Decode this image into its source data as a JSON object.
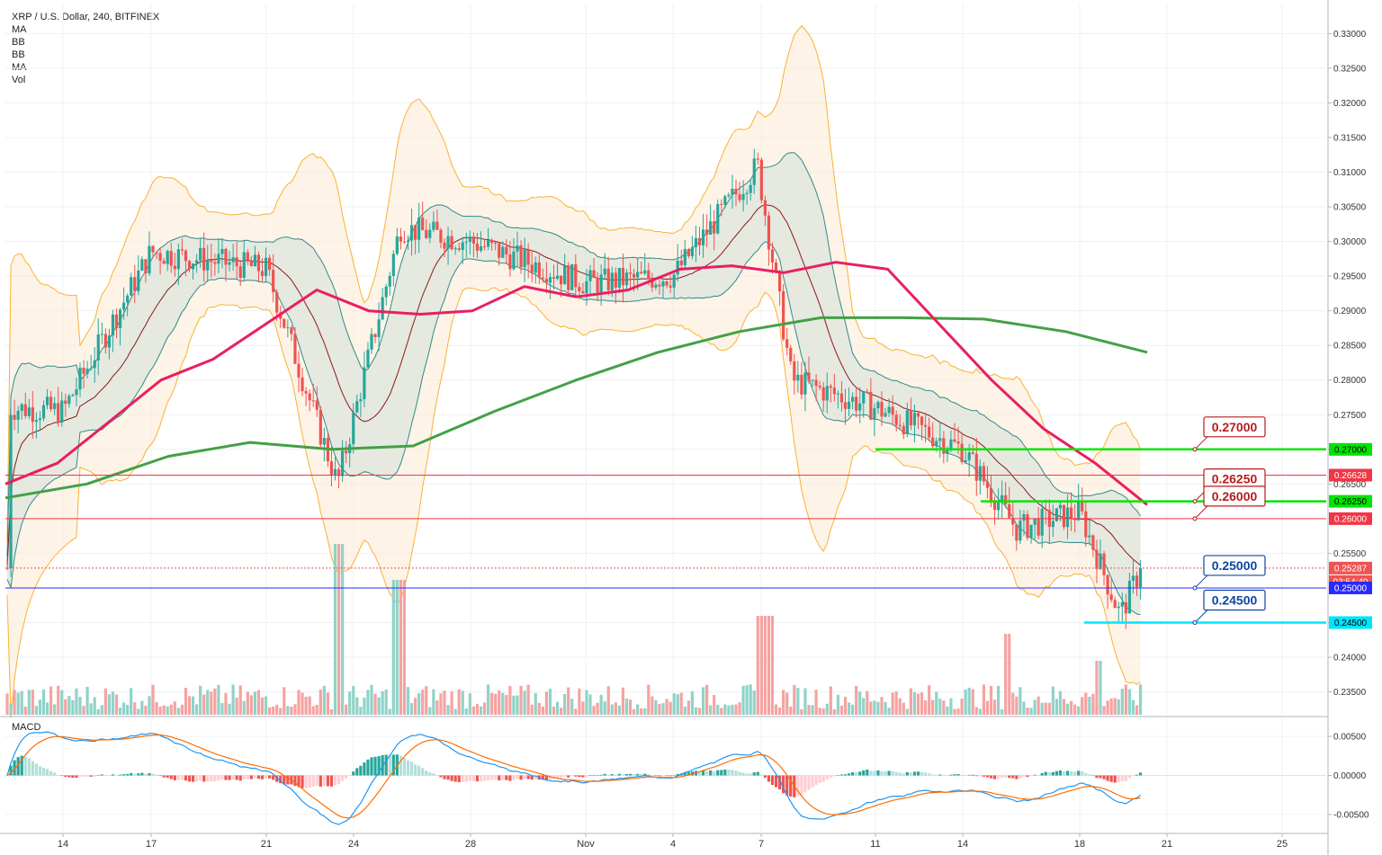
{
  "header": {
    "symbol_line": "XRP / U.S. Dollar, 240, BITFINEX",
    "indicators": [
      "MA",
      "BB",
      "BB",
      "MA",
      "Vol"
    ]
  },
  "macd_label": "MACD",
  "colors": {
    "up": "#26a69a",
    "down": "#ef5350",
    "ma_fast": "#e91e63",
    "ma_slow": "#43a047",
    "bb_band": "#f9b233",
    "bb_inner": "#2e8b8b",
    "macd_line": "#2196f3",
    "signal_line": "#ff6d00",
    "grid": "#eef0f3"
  },
  "chart_data": [
    {
      "type": "candlestick",
      "title": "XRP / U.S. Dollar, 240, BITFINEX",
      "x_ticks": [
        "14",
        "17",
        "21",
        "24",
        "28",
        "Nov",
        "4",
        "7",
        "11",
        "14",
        "18",
        "21",
        "25"
      ],
      "y_ticks": [
        "0.33000",
        "0.32500",
        "0.32000",
        "0.31500",
        "0.31000",
        "0.30500",
        "0.30000",
        "0.29500",
        "0.29000",
        "0.28500",
        "0.28000",
        "0.27500",
        "0.27000",
        "0.26500",
        "0.26000",
        "0.25500",
        "0.25000",
        "0.24500",
        "0.24000",
        "0.23500"
      ],
      "ylim": [
        0.2317,
        0.3342
      ],
      "grid": true,
      "key_points": [
        {
          "x": "10-14",
          "close": 0.2755
        },
        {
          "x": "10-17",
          "close": 0.2985
        },
        {
          "x": "10-21",
          "close": 0.296
        },
        {
          "x": "10-23",
          "close": 0.265
        },
        {
          "x": "10-25",
          "close": 0.302
        },
        {
          "x": "10-28",
          "close": 0.3
        },
        {
          "x": "11-01",
          "close": 0.294
        },
        {
          "x": "11-04",
          "close": 0.295
        },
        {
          "x": "11-07",
          "close": 0.311
        },
        {
          "x": "11-08",
          "close": 0.28
        },
        {
          "x": "11-11",
          "close": 0.276
        },
        {
          "x": "11-14",
          "close": 0.27
        },
        {
          "x": "11-16",
          "close": 0.2585
        },
        {
          "x": "11-18",
          "close": 0.261
        },
        {
          "x": "11-19",
          "close": 0.246
        },
        {
          "x": "11-20",
          "close": 0.2529
        }
      ],
      "current_price": "0.25287",
      "countdown": "03:54:40",
      "horizontal_levels": [
        {
          "price": "0.27000",
          "color": "#00e600",
          "label": "0.27000"
        },
        {
          "price": "0.26628",
          "color": "#f23645",
          "label": ""
        },
        {
          "price": "0.26250",
          "color": "#00e600",
          "label": "0.26250"
        },
        {
          "price": "0.26000",
          "color": "#f23645",
          "label": "0.26000"
        },
        {
          "price": "0.25000",
          "color": "#2929ff",
          "label": "0.25000"
        },
        {
          "price": "0.24500",
          "color": "#00e5ff",
          "label": "0.24500"
        }
      ],
      "axis_badges": [
        {
          "text": "0.27000",
          "bg": "#00e600",
          "fg": "#000000"
        },
        {
          "text": "0.26628",
          "bg": "#f23645",
          "fg": "#ffffff"
        },
        {
          "text": "0.26250",
          "bg": "#00e600",
          "fg": "#000000"
        },
        {
          "text": "0.26000",
          "bg": "#f23645",
          "fg": "#ffffff"
        },
        {
          "text": "0.25287",
          "bg": "#ef5350",
          "fg": "#ffffff"
        },
        {
          "text": "03:54:40",
          "bg": "#ef5350",
          "fg": "#ffffff"
        },
        {
          "text": "0.25000",
          "bg": "#2929ff",
          "fg": "#ffffff"
        },
        {
          "text": "0.24500",
          "bg": "#00e5ff",
          "fg": "#000000"
        }
      ],
      "callouts": [
        {
          "text": "0.27000",
          "color": "#b71c1c"
        },
        {
          "text": "0.26250",
          "color": "#b71c1c"
        },
        {
          "text": "0.26000",
          "color": "#b71c1c"
        },
        {
          "text": "0.25000",
          "color": "#0d47a1"
        },
        {
          "text": "0.24500",
          "color": "#0d47a1"
        }
      ],
      "ma_fast_points": [
        0.265,
        0.268,
        0.274,
        0.28,
        0.283,
        0.288,
        0.293,
        0.29,
        0.2895,
        0.29,
        0.2935,
        0.292,
        0.293,
        0.296,
        0.2965,
        0.2955,
        0.297,
        0.296,
        0.288,
        0.28,
        0.273,
        0.268,
        0.262
      ],
      "ma_slow_points": [
        0.263,
        0.265,
        0.269,
        0.271,
        0.27,
        0.2705,
        0.2755,
        0.28,
        0.284,
        0.287,
        0.289,
        0.289,
        0.2888,
        0.287,
        0.284
      ]
    },
    {
      "type": "macd",
      "title": "MACD",
      "y_ticks": [
        "0.00500",
        "0.00000",
        "-0.00500"
      ],
      "ylim": [
        -0.0072,
        0.0072
      ]
    }
  ]
}
